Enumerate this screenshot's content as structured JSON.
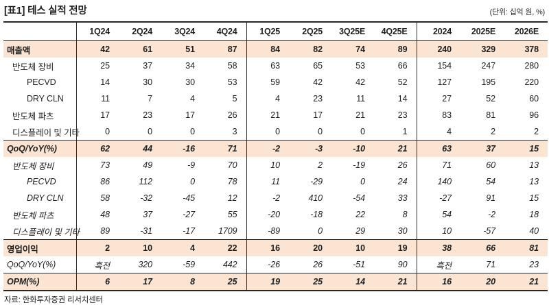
{
  "title": "[표1] 테스 실적 전망",
  "unit_note": "(단위: 십억 원, %)",
  "source": "자료: 한화투자증권 리서치센터",
  "colors": {
    "highlight_bg": "#fbe4d2",
    "border": "#262626",
    "text": "#1f1f1f"
  },
  "table": {
    "columns": [
      "1Q24",
      "2Q24",
      "3Q24",
      "4Q24",
      "1Q25",
      "2Q25",
      "3Q25E",
      "4Q25E",
      "2024",
      "2025E",
      "2026E"
    ],
    "rows": [
      {
        "label": "매출액",
        "indent": 0,
        "bold": true,
        "italic": false,
        "highlight": true,
        "rule_top": false,
        "annual_italic": false,
        "values": [
          "42",
          "61",
          "51",
          "87",
          "84",
          "82",
          "74",
          "89",
          "240",
          "329",
          "378"
        ]
      },
      {
        "label": "반도체 장비",
        "indent": 1,
        "bold": false,
        "italic": false,
        "highlight": false,
        "rule_top": false,
        "annual_italic": false,
        "values": [
          "25",
          "37",
          "34",
          "58",
          "63",
          "65",
          "53",
          "66",
          "154",
          "247",
          "280"
        ]
      },
      {
        "label": "PECVD",
        "indent": 2,
        "bold": false,
        "italic": false,
        "highlight": false,
        "rule_top": false,
        "annual_italic": false,
        "values": [
          "14",
          "30",
          "30",
          "53",
          "59",
          "42",
          "42",
          "52",
          "127",
          "195",
          "220"
        ]
      },
      {
        "label": "DRY CLN",
        "indent": 2,
        "bold": false,
        "italic": false,
        "highlight": false,
        "rule_top": false,
        "annual_italic": false,
        "values": [
          "11",
          "7",
          "4",
          "5",
          "4",
          "23",
          "11",
          "14",
          "27",
          "52",
          "60"
        ]
      },
      {
        "label": "반도체 파츠",
        "indent": 1,
        "bold": false,
        "italic": false,
        "highlight": false,
        "rule_top": false,
        "annual_italic": false,
        "values": [
          "17",
          "23",
          "17",
          "26",
          "21",
          "17",
          "21",
          "23",
          "83",
          "81",
          "96"
        ]
      },
      {
        "label": "디스플레이 및 기타",
        "indent": 1,
        "bold": false,
        "italic": false,
        "highlight": false,
        "rule_top": false,
        "annual_italic": false,
        "values": [
          "0",
          "0",
          "0",
          "3",
          "0",
          "0",
          "0",
          "1",
          "4",
          "2",
          "2"
        ]
      },
      {
        "label": "QoQ/YoY(%)",
        "indent": 0,
        "bold": true,
        "italic": true,
        "highlight": true,
        "rule_top": true,
        "annual_italic": false,
        "values": [
          "62",
          "44",
          "-16",
          "71",
          "-2",
          "-3",
          "-10",
          "21",
          "63",
          "37",
          "15"
        ]
      },
      {
        "label": "반도체 장비",
        "indent": 1,
        "bold": false,
        "italic": true,
        "highlight": false,
        "rule_top": false,
        "annual_italic": false,
        "values": [
          "73",
          "49",
          "-9",
          "70",
          "10",
          "2",
          "-19",
          "26",
          "71",
          "60",
          "13"
        ]
      },
      {
        "label": "PECVD",
        "indent": 2,
        "bold": false,
        "italic": true,
        "highlight": false,
        "rule_top": false,
        "annual_italic": false,
        "values": [
          "86",
          "112",
          "0",
          "78",
          "11",
          "-29",
          "0",
          "24",
          "140",
          "54",
          "13"
        ]
      },
      {
        "label": "DRY CLN",
        "indent": 2,
        "bold": false,
        "italic": true,
        "highlight": false,
        "rule_top": false,
        "annual_italic": false,
        "values": [
          "58",
          "-32",
          "-45",
          "12",
          "-2",
          "410",
          "-54",
          "33",
          "-27",
          "91",
          "15"
        ]
      },
      {
        "label": "반도체 파츠",
        "indent": 1,
        "bold": false,
        "italic": true,
        "highlight": false,
        "rule_top": false,
        "annual_italic": false,
        "values": [
          "48",
          "37",
          "-27",
          "55",
          "-20",
          "-18",
          "22",
          "8",
          "54",
          "-2",
          "18"
        ]
      },
      {
        "label": "디스플레이 및 기타",
        "indent": 1,
        "bold": false,
        "italic": true,
        "highlight": false,
        "rule_top": false,
        "annual_italic": false,
        "values": [
          "89",
          "-31",
          "-17",
          "1709",
          "-89",
          "0",
          "29",
          "30",
          "10",
          "-57",
          "40"
        ]
      },
      {
        "label": "영업이익",
        "indent": 0,
        "bold": true,
        "italic": false,
        "highlight": true,
        "rule_top": true,
        "annual_italic": true,
        "values": [
          "2",
          "10",
          "4",
          "22",
          "16",
          "20",
          "10",
          "19",
          "38",
          "66",
          "81"
        ]
      },
      {
        "label": "QoQ/YoY(%)",
        "indent": 0,
        "bold": false,
        "italic": true,
        "highlight": false,
        "rule_top": false,
        "annual_italic": false,
        "values": [
          "흑전",
          "320",
          "-59",
          "442",
          "-26",
          "26",
          "-51",
          "90",
          "흑전",
          "71",
          "23"
        ]
      },
      {
        "label": "OPM(%)",
        "indent": 0,
        "bold": true,
        "italic": true,
        "highlight": true,
        "rule_top": true,
        "annual_italic": false,
        "values": [
          "6",
          "17",
          "8",
          "25",
          "19",
          "25",
          "14",
          "21",
          "16",
          "20",
          "21"
        ]
      }
    ]
  }
}
